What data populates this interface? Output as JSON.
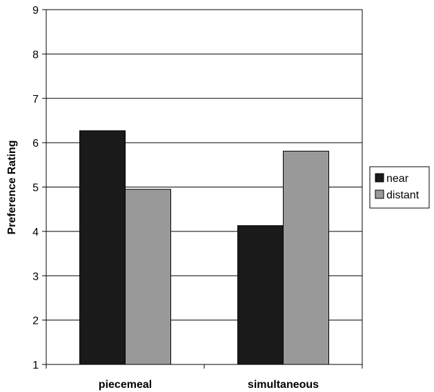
{
  "chart_data": {
    "type": "bar",
    "title": "",
    "xlabel": "",
    "ylabel": "Preference Rating",
    "ylim": [
      1,
      9
    ],
    "yticks": [
      1,
      2,
      3,
      4,
      5,
      6,
      7,
      8,
      9
    ],
    "grid": true,
    "legend_position": "right",
    "categories": [
      "piecemeal",
      "simultaneous"
    ],
    "series": [
      {
        "name": "near",
        "values": [
          6.27,
          4.13
        ],
        "color": "#1a1a1a"
      },
      {
        "name": "distant",
        "values": [
          4.95,
          5.81
        ],
        "color": "#999999"
      }
    ]
  }
}
